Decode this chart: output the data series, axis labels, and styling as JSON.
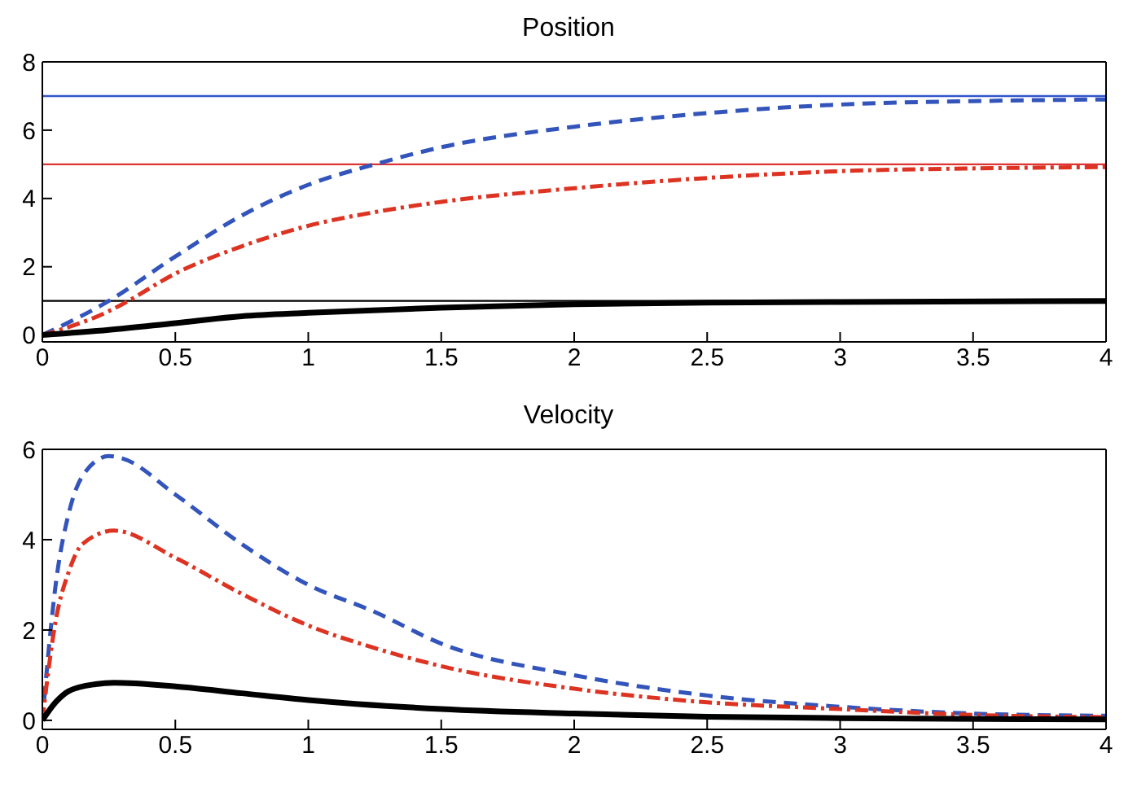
{
  "chart_data": [
    {
      "type": "line",
      "title": "Position",
      "xlim": [
        0,
        4
      ],
      "xticks": [
        0,
        0.5,
        1,
        1.5,
        2,
        2.5,
        3,
        3.5,
        4
      ],
      "ylim": [
        -0.2,
        8
      ],
      "yticks": [
        0,
        2,
        4,
        6,
        8
      ],
      "marker": "none",
      "ref_lines": [
        {
          "axis": "y",
          "value": 7,
          "color": "#3355cc",
          "line_style": "solid"
        },
        {
          "axis": "y",
          "value": 5,
          "color": "#dd3333",
          "line_style": "solid"
        },
        {
          "axis": "y",
          "value": 1,
          "color": "#000000",
          "line_style": "solid"
        }
      ],
      "series": [
        {
          "color": "#3355bb",
          "line_style": "dashed",
          "x": [
            0,
            0.25,
            0.5,
            0.75,
            1,
            1.25,
            1.5,
            2,
            2.5,
            3,
            3.5,
            4
          ],
          "values": [
            0,
            1,
            2.3,
            3.5,
            4.4,
            5,
            5.5,
            6.1,
            6.5,
            6.75,
            6.85,
            6.9
          ]
        },
        {
          "color": "#dd3322",
          "line_style": "dotted",
          "x": [
            0,
            0.25,
            0.3,
            0.5,
            0.75,
            1,
            1.25,
            1.5,
            2,
            2.5,
            3,
            3.5,
            4
          ],
          "values": [
            0,
            0.7,
            0.9,
            1.8,
            2.6,
            3.2,
            3.6,
            3.9,
            4.3,
            4.6,
            4.8,
            4.88,
            4.92
          ]
        },
        {
          "color": "#000000",
          "line_style": "solid",
          "x": [
            0,
            0.25,
            0.5,
            0.75,
            1,
            1.5,
            2,
            2.5,
            3,
            4
          ],
          "values": [
            0,
            0.15,
            0.35,
            0.55,
            0.65,
            0.8,
            0.9,
            0.95,
            0.97,
            1.0
          ]
        }
      ]
    },
    {
      "type": "line",
      "title": "Velocity",
      "xlim": [
        0,
        4
      ],
      "xticks": [
        0,
        0.5,
        1,
        1.5,
        2,
        2.5,
        3,
        3.5,
        4
      ],
      "ylim": [
        -0.2,
        6
      ],
      "yticks": [
        0,
        2,
        4,
        6
      ],
      "marker": "none",
      "series": [
        {
          "color": "#3355bb",
          "line_style": "dashed",
          "x": [
            0,
            0.05,
            0.1,
            0.15,
            0.25,
            0.3,
            0.5,
            0.75,
            1,
            1.25,
            1.5,
            2,
            2.5,
            3,
            3.5,
            4
          ],
          "values": [
            0,
            3,
            4.6,
            5.4,
            5.85,
            5.8,
            5,
            3.9,
            3,
            2.4,
            1.7,
            1,
            0.55,
            0.3,
            0.15,
            0.1
          ]
        },
        {
          "color": "#dd3322",
          "line_style": "dotted",
          "x": [
            0,
            0.05,
            0.1,
            0.15,
            0.27,
            0.5,
            0.75,
            1,
            1.25,
            1.5,
            2,
            2.5,
            3,
            3.5,
            4
          ],
          "values": [
            0,
            2.2,
            3.3,
            3.9,
            4.2,
            3.6,
            2.8,
            2.1,
            1.6,
            1.2,
            0.7,
            0.4,
            0.25,
            0.12,
            0.07
          ]
        },
        {
          "color": "#000000",
          "line_style": "solid",
          "x": [
            0,
            0.05,
            0.1,
            0.2,
            0.27,
            0.5,
            0.75,
            1,
            1.5,
            2,
            2.5,
            3,
            4
          ],
          "values": [
            0,
            0.4,
            0.65,
            0.8,
            0.83,
            0.75,
            0.6,
            0.45,
            0.25,
            0.15,
            0.08,
            0.05,
            0.02
          ]
        }
      ]
    }
  ]
}
